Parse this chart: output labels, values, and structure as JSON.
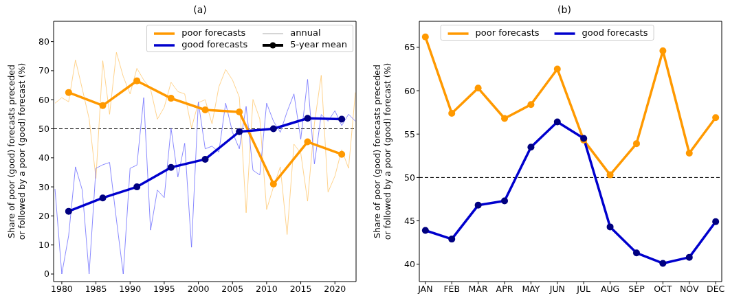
{
  "chart_data": [
    {
      "type": "line",
      "title": "(a)",
      "ylabel": "Share of poor (good) forecasts preceded or followed by a poor (good) forecast (%)",
      "x": [
        1979,
        1980,
        1981,
        1982,
        1983,
        1984,
        1985,
        1986,
        1987,
        1988,
        1989,
        1990,
        1991,
        1992,
        1993,
        1994,
        1995,
        1996,
        1997,
        1998,
        1999,
        2000,
        2001,
        2002,
        2003,
        2004,
        2005,
        2006,
        2007,
        2008,
        2009,
        2010,
        2011,
        2012,
        2013,
        2014,
        2015,
        2016,
        2017,
        2018,
        2019,
        2020,
        2021,
        2022,
        2023
      ],
      "series": [
        {
          "color": "#ffc870",
          "marker": "none",
          "values": [
            58.8,
            60.7,
            59.3,
            73.7,
            63.7,
            53.5,
            32.9,
            73.4,
            55,
            76.3,
            68,
            62,
            70.8,
            66.8,
            63.7,
            53.3,
            57.4,
            66,
            62.8,
            62,
            50.3,
            59,
            60,
            51.7,
            64.4,
            70.4,
            66.8,
            60.9,
            21.1,
            60.1,
            53.4,
            22.2,
            30,
            36.9,
            13.6,
            44.7,
            41.6,
            25.1,
            51.8,
            68.4,
            28.2,
            33.7,
            42.8,
            36.4,
            62.5
          ]
        },
        {
          "color": "#6b6bff",
          "marker": "none",
          "values": [
            29.3,
            0,
            13.2,
            36.9,
            28.9,
            0,
            36.4,
            37.6,
            38.4,
            18.7,
            0,
            36.4,
            37.5,
            60.7,
            15.1,
            28.9,
            26.3,
            50.2,
            33.4,
            45,
            9.2,
            59.2,
            43.1,
            44,
            42,
            58.8,
            48.8,
            43.1,
            57.7,
            35.7,
            34.1,
            58.8,
            52.6,
            48.8,
            55.9,
            62,
            46.4,
            67,
            37.9,
            54.9,
            52.6,
            56.2,
            51.1,
            55,
            52.6
          ]
        },
        {
          "name": "poor forecasts",
          "color": "#ff9900",
          "marker": "circle",
          "x": [
            1981,
            1986,
            1991,
            1996,
            2001,
            2006,
            2011,
            2016,
            2021
          ],
          "values": [
            62.5,
            58,
            66.5,
            60.5,
            56.5,
            55.8,
            31,
            45.5,
            41.2
          ]
        },
        {
          "name": "good forecasts",
          "color": "#0000cd",
          "marker": "circle",
          "x": [
            1981,
            1986,
            1991,
            1996,
            2001,
            2006,
            2011,
            2016,
            2021
          ],
          "values": [
            21.6,
            26.2,
            30,
            36.7,
            39.5,
            49,
            50,
            53.6,
            53.3
          ]
        }
      ],
      "annotations": [
        "annual",
        "5-year mean"
      ],
      "xlim": [
        1978.8,
        2023.1
      ],
      "xticks": [
        1980,
        1985,
        1990,
        1995,
        2000,
        2005,
        2010,
        2015,
        2020
      ],
      "ylim": [
        -2.6,
        87
      ],
      "yticks": [
        0,
        10,
        20,
        30,
        40,
        50,
        60,
        70,
        80
      ],
      "ref_lines": [
        {
          "axis": "y",
          "value": 50,
          "color": "#000000",
          "line_style": "dashed"
        }
      ],
      "grid": false,
      "legend": "top right",
      "line_style": "solid"
    },
    {
      "type": "line",
      "title": "(b)",
      "ylabel": "Share of poor (good) forecasts preceded or followed by a poor (good) forecast (%)",
      "categories": [
        "JAN",
        "FEB",
        "MAR",
        "APR",
        "MAY",
        "JUN",
        "JUL",
        "AUG",
        "SEP",
        "OCT",
        "NOV",
        "DEC"
      ],
      "series": [
        {
          "name": "poor forecasts",
          "color": "#ff9900",
          "values": [
            66.2,
            57.4,
            60.3,
            56.8,
            58.4,
            62.5,
            54.3,
            50.3,
            53.9,
            64.6,
            52.8,
            56.9
          ]
        },
        {
          "name": "good forecasts",
          "color": "#0000cd",
          "values": [
            43.9,
            42.9,
            46.8,
            47.3,
            53.5,
            56.4,
            54.5,
            44.3,
            41.3,
            40.1,
            40.8,
            44.9
          ]
        }
      ],
      "ylim": [
        38,
        68
      ],
      "yticks": [
        40,
        45,
        50,
        55,
        60,
        65
      ],
      "ref_lines": [
        {
          "axis": "y",
          "value": 50,
          "color": "#000000",
          "line_style": "dashed"
        }
      ],
      "grid": false,
      "legend": "top",
      "marker": "circle",
      "line_style": "solid"
    }
  ]
}
